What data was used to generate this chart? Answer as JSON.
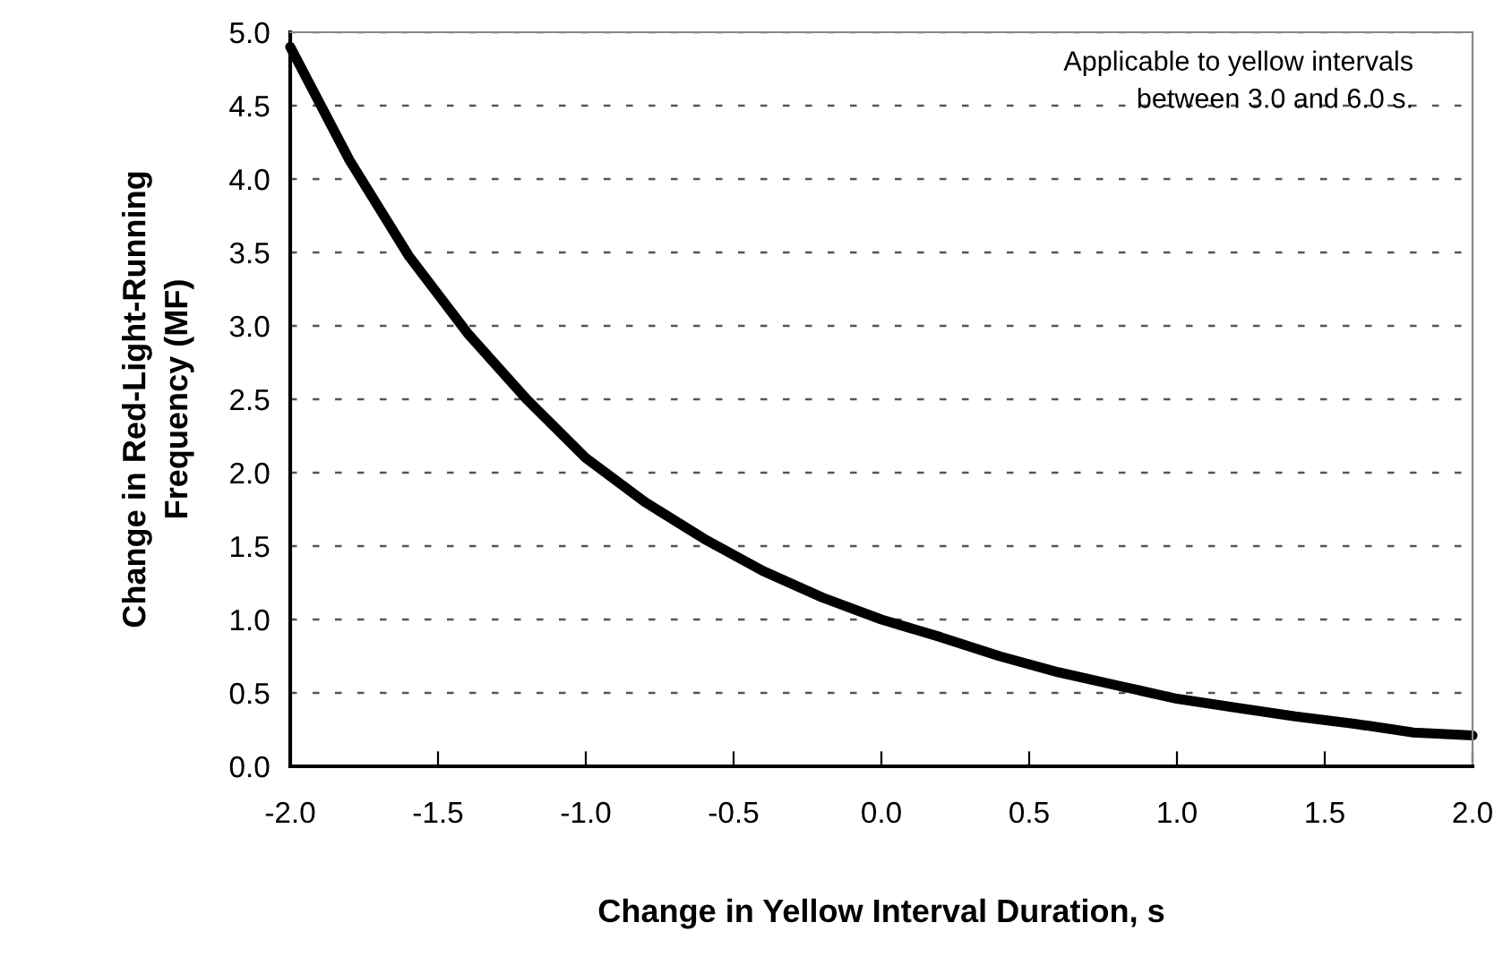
{
  "chart_data": {
    "type": "line",
    "xlabel": "Change in Yellow Interval Duration, s",
    "ylabel": "Change in Red-Light-Running\nFrequency (MF)",
    "annotations": [
      "Applicable to yellow intervals\nbetween 3.0 and 6.0 s."
    ],
    "x": [
      -2.0,
      -1.8,
      -1.6,
      -1.4,
      -1.2,
      -1.0,
      -0.8,
      -0.6,
      -0.4,
      -0.2,
      0.0,
      0.2,
      0.4,
      0.6,
      0.8,
      1.0,
      1.2,
      1.4,
      1.6,
      1.8,
      2.0
    ],
    "series": [
      {
        "color": "#000000",
        "values": [
          4.9,
          4.13,
          3.48,
          2.95,
          2.5,
          2.1,
          1.8,
          1.55,
          1.33,
          1.15,
          1.0,
          0.88,
          0.75,
          0.64,
          0.55,
          0.46,
          0.4,
          0.34,
          0.29,
          0.23,
          0.21
        ]
      }
    ],
    "xlim": [
      -2.0,
      2.0
    ],
    "xticks": [
      {
        "value": -2.0,
        "label": "-2.0"
      },
      {
        "value": -1.5,
        "label": "-1.5"
      },
      {
        "value": -1.0,
        "label": "-1.0"
      },
      {
        "value": -0.5,
        "label": "-0.5"
      },
      {
        "value": 0.0,
        "label": "0.0"
      },
      {
        "value": 0.5,
        "label": "0.5"
      },
      {
        "value": 1.0,
        "label": "1.0"
      },
      {
        "value": 1.5,
        "label": "1.5"
      },
      {
        "value": 2.0,
        "label": "2.0"
      }
    ],
    "ylim": [
      0.0,
      5.0
    ],
    "yticks": [
      {
        "value": 0.0,
        "label": "0.0"
      },
      {
        "value": 0.5,
        "label": "0.5"
      },
      {
        "value": 1.0,
        "label": "1.0"
      },
      {
        "value": 1.5,
        "label": "1.5"
      },
      {
        "value": 2.0,
        "label": "2.0"
      },
      {
        "value": 2.5,
        "label": "2.5"
      },
      {
        "value": 3.0,
        "label": "3.0"
      },
      {
        "value": 3.5,
        "label": "3.5"
      },
      {
        "value": 4.0,
        "label": "4.0"
      },
      {
        "value": 4.5,
        "label": "4.5"
      },
      {
        "value": 5.0,
        "label": "5.0"
      }
    ],
    "grid": "y",
    "line_style": "solid"
  }
}
